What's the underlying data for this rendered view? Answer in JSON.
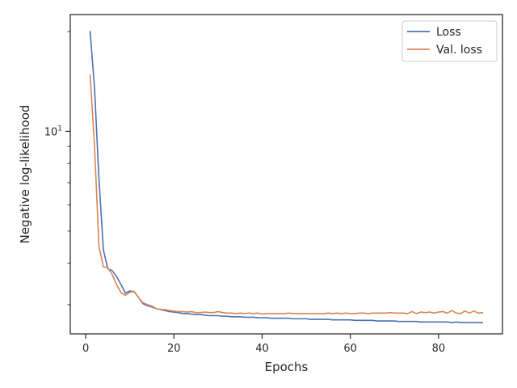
{
  "chart_data": {
    "type": "line",
    "xlabel": "Epochs",
    "ylabel": "Negative log-likelihood",
    "xlim": [
      -3.5,
      94.5
    ],
    "ylim": [
      2.45,
      22.5
    ],
    "yscale": "log",
    "x_ticks": [
      0,
      20,
      40,
      60,
      80
    ],
    "y_ticks": [
      {
        "value": 10,
        "base": "10",
        "exponent": "1"
      }
    ],
    "grid": false,
    "legend_position": "top-right",
    "series": [
      {
        "name": "Loss",
        "color": "#4c72b0",
        "x": [
          1,
          2,
          3,
          4,
          5,
          6,
          7,
          8,
          9,
          10,
          11,
          12,
          13,
          14,
          15,
          16,
          17,
          18,
          19,
          20,
          21,
          22,
          23,
          24,
          25,
          26,
          27,
          28,
          29,
          30,
          31,
          32,
          33,
          34,
          35,
          36,
          37,
          38,
          39,
          40,
          41,
          42,
          43,
          44,
          45,
          46,
          47,
          48,
          49,
          50,
          51,
          52,
          53,
          54,
          55,
          56,
          57,
          58,
          59,
          60,
          61,
          62,
          63,
          64,
          65,
          66,
          67,
          68,
          69,
          70,
          71,
          72,
          73,
          74,
          75,
          76,
          77,
          78,
          79,
          80,
          81,
          82,
          83,
          84,
          85,
          86,
          87,
          88,
          89,
          90
        ],
        "y": [
          20.0,
          13.5,
          7.2,
          4.4,
          3.85,
          3.8,
          3.65,
          3.45,
          3.25,
          3.3,
          3.28,
          3.15,
          3.02,
          2.98,
          2.95,
          2.92,
          2.9,
          2.88,
          2.86,
          2.85,
          2.84,
          2.82,
          2.82,
          2.81,
          2.8,
          2.8,
          2.79,
          2.78,
          2.78,
          2.78,
          2.77,
          2.77,
          2.76,
          2.76,
          2.76,
          2.75,
          2.75,
          2.75,
          2.74,
          2.74,
          2.74,
          2.73,
          2.73,
          2.73,
          2.73,
          2.73,
          2.72,
          2.72,
          2.72,
          2.72,
          2.71,
          2.71,
          2.71,
          2.71,
          2.71,
          2.7,
          2.7,
          2.7,
          2.7,
          2.7,
          2.69,
          2.69,
          2.69,
          2.69,
          2.69,
          2.68,
          2.68,
          2.68,
          2.68,
          2.68,
          2.67,
          2.67,
          2.67,
          2.67,
          2.67,
          2.66,
          2.66,
          2.66,
          2.66,
          2.66,
          2.66,
          2.66,
          2.65,
          2.66,
          2.65,
          2.65,
          2.65,
          2.65,
          2.65,
          2.65
        ]
      },
      {
        "name": "Val. loss",
        "color": "#dd8452",
        "x": [
          1,
          2,
          3,
          4,
          5,
          6,
          7,
          8,
          9,
          10,
          11,
          12,
          13,
          14,
          15,
          16,
          17,
          18,
          19,
          20,
          21,
          22,
          23,
          24,
          25,
          26,
          27,
          28,
          29,
          30,
          31,
          32,
          33,
          34,
          35,
          36,
          37,
          38,
          39,
          40,
          41,
          42,
          43,
          44,
          45,
          46,
          47,
          48,
          49,
          50,
          51,
          52,
          53,
          54,
          55,
          56,
          57,
          58,
          59,
          60,
          61,
          62,
          63,
          64,
          65,
          66,
          67,
          68,
          69,
          70,
          71,
          72,
          73,
          74,
          75,
          76,
          77,
          78,
          79,
          80,
          81,
          82,
          83,
          84,
          85,
          86,
          87,
          88,
          89,
          90
        ],
        "y": [
          14.8,
          9.0,
          4.5,
          3.9,
          3.88,
          3.7,
          3.45,
          3.26,
          3.2,
          3.27,
          3.29,
          3.15,
          3.04,
          3.0,
          2.97,
          2.92,
          2.9,
          2.9,
          2.88,
          2.87,
          2.86,
          2.86,
          2.85,
          2.86,
          2.84,
          2.84,
          2.85,
          2.84,
          2.84,
          2.86,
          2.84,
          2.83,
          2.83,
          2.82,
          2.83,
          2.82,
          2.83,
          2.82,
          2.83,
          2.81,
          2.82,
          2.82,
          2.82,
          2.82,
          2.82,
          2.83,
          2.82,
          2.82,
          2.82,
          2.82,
          2.82,
          2.82,
          2.82,
          2.82,
          2.83,
          2.82,
          2.83,
          2.82,
          2.83,
          2.82,
          2.82,
          2.83,
          2.83,
          2.82,
          2.83,
          2.83,
          2.83,
          2.83,
          2.84,
          2.83,
          2.83,
          2.83,
          2.82,
          2.86,
          2.82,
          2.85,
          2.84,
          2.85,
          2.83,
          2.85,
          2.86,
          2.83,
          2.88,
          2.83,
          2.82,
          2.87,
          2.83,
          2.87,
          2.83,
          2.84
        ]
      }
    ]
  }
}
